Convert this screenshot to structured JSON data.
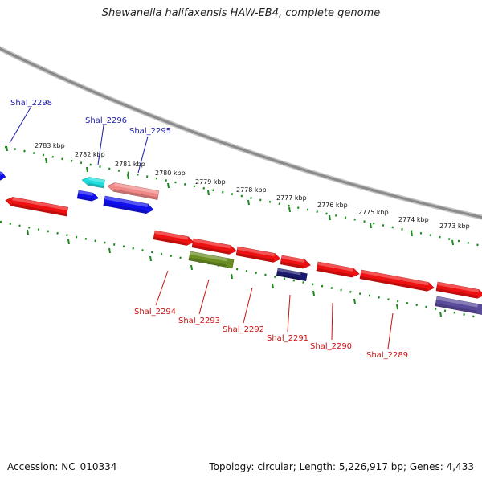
{
  "title": "Shewanella halifaxensis HAW-EB4, complete genome",
  "accession_text": "Accession: NC_010334",
  "summary_text": "Topology: circular; Length: 5,226,917 bp; Genes: 4,433",
  "colors": {
    "backbone": "#8a8a8a",
    "ticks": "#1a8a1a",
    "gene_red": "#ee1111",
    "label_blue": "#1a1aaa",
    "label_red": "#cc1111"
  },
  "scale": {
    "ticks": [
      {
        "label": "2783 kbp"
      },
      {
        "label": "2782 kbp"
      },
      {
        "label": "2781 kbp"
      },
      {
        "label": "2780 kbp"
      },
      {
        "label": "2779 kbp"
      },
      {
        "label": "2778 kbp"
      },
      {
        "label": "2777 kbp"
      },
      {
        "label": "2776 kbp"
      },
      {
        "label": "2775 kbp"
      },
      {
        "label": "2774 kbp"
      },
      {
        "label": "2773 kbp"
      }
    ]
  },
  "genes": [
    {
      "name": "",
      "color": "#1010ee"
    },
    {
      "name": "",
      "color": "#ee1111"
    },
    {
      "name": "",
      "color": "#22dddd"
    },
    {
      "name": "",
      "color": "#1010ee"
    },
    {
      "name": "",
      "color": "#f08888"
    },
    {
      "name": "",
      "color": "#1010ee"
    },
    {
      "name": "",
      "color": "#ee1111"
    },
    {
      "name": "",
      "color": "#ee1111"
    },
    {
      "name": "",
      "color": "#ee1111"
    },
    {
      "name": "",
      "color": "#ee1111"
    },
    {
      "name": "",
      "color": "#ee1111"
    },
    {
      "name": "",
      "color": "#ee1111"
    },
    {
      "name": "",
      "color": "#ee1111"
    },
    {
      "name": "",
      "color": "#6b8e23"
    },
    {
      "name": "",
      "color": "#1a1a6e"
    },
    {
      "name": "",
      "color": "#5a4a9a"
    }
  ],
  "labels": {
    "top": [
      "Shal_2298",
      "Shal_2296",
      "Shal_2295"
    ],
    "bottom": [
      "Shal_2294",
      "Shal_2293",
      "Shal_2292",
      "Shal_2291",
      "Shal_2290",
      "Shal_2289"
    ]
  }
}
